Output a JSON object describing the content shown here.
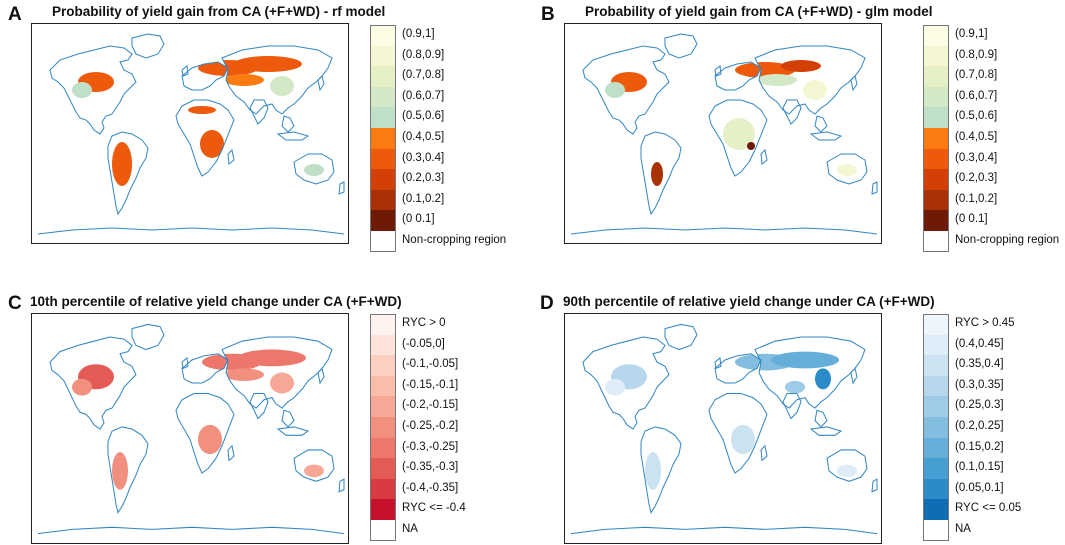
{
  "chart_data": [
    {
      "type": "choropleth-map",
      "panel_letter": "A",
      "title": "Probability of yield gain from CA (+F+WD) - rf model",
      "legend": [
        {
          "label": "(0.9,1]",
          "color": "#fdfde6"
        },
        {
          "label": "(0.8,0.9]",
          "color": "#f4f7d2"
        },
        {
          "label": "(0.7,0.8]",
          "color": "#e6f0c6"
        },
        {
          "label": "(0.6,0.7]",
          "color": "#d2e8c6"
        },
        {
          "label": "(0.5,0.6]",
          "color": "#bfe0c7"
        },
        {
          "label": "(0.4,0.5]",
          "color": "#fb7a12"
        },
        {
          "label": "(0.3,0.4]",
          "color": "#ee5a0c"
        },
        {
          "label": "(0.2,0.3]",
          "color": "#d23f07"
        },
        {
          "label": "(0.1,0.2]",
          "color": "#a83205"
        },
        {
          "label": "(0 0.1]",
          "color": "#6e1a04"
        },
        {
          "label": "Non-cropping region",
          "color": "#ffffff"
        }
      ]
    },
    {
      "type": "choropleth-map",
      "panel_letter": "B",
      "title": "Probability of yield gain from CA (+F+WD) - glm model",
      "legend": [
        {
          "label": "(0.9,1]",
          "color": "#fdfde6"
        },
        {
          "label": "(0.8,0.9]",
          "color": "#f4f7d2"
        },
        {
          "label": "(0.7,0.8]",
          "color": "#e6f0c6"
        },
        {
          "label": "(0.6,0.7]",
          "color": "#d2e8c6"
        },
        {
          "label": "(0.5,0.6]",
          "color": "#bfe0c7"
        },
        {
          "label": "(0.4,0.5]",
          "color": "#fb7a12"
        },
        {
          "label": "(0.3,0.4]",
          "color": "#ee5a0c"
        },
        {
          "label": "(0.2,0.3]",
          "color": "#d23f07"
        },
        {
          "label": "(0.1,0.2]",
          "color": "#a83205"
        },
        {
          "label": "(0 0.1]",
          "color": "#6e1a04"
        },
        {
          "label": "Non-cropping region",
          "color": "#ffffff"
        }
      ]
    },
    {
      "type": "choropleth-map",
      "panel_letter": "C",
      "title": "10th percentile of relative yield change under CA (+F+WD)",
      "legend": [
        {
          "label": "RYC > 0",
          "color": "#fff3ef"
        },
        {
          "label": "(-0.05,0]",
          "color": "#fde3da"
        },
        {
          "label": "(-0.1,-0.05]",
          "color": "#fbd0c3"
        },
        {
          "label": "(-0.15,-0.1]",
          "color": "#f9bdac"
        },
        {
          "label": "(-0.2,-0.15]",
          "color": "#f6a795"
        },
        {
          "label": "(-0.25,-0.2]",
          "color": "#f2907f"
        },
        {
          "label": "(-0.3,-0.25]",
          "color": "#ec776a"
        },
        {
          "label": "(-0.35,-0.3]",
          "color": "#e45b55"
        },
        {
          "label": "(-0.4,-0.35]",
          "color": "#d93b40"
        },
        {
          "label": "RYC <= -0.4",
          "color": "#c8102e"
        },
        {
          "label": "NA",
          "color": "#ffffff"
        }
      ]
    },
    {
      "type": "choropleth-map",
      "panel_letter": "D",
      "title": "90th percentile of relative yield change under CA (+F+WD)",
      "legend": [
        {
          "label": "RYC > 0.45",
          "color": "#eef5fb"
        },
        {
          "label": "(0.4,0.45]",
          "color": "#ddecf6"
        },
        {
          "label": "(0.35,0.4]",
          "color": "#cbe2f1"
        },
        {
          "label": "(0.3,0.35]",
          "color": "#b6d7ec"
        },
        {
          "label": "(0.25,0.3]",
          "color": "#9ecbe6"
        },
        {
          "label": "(0.2,0.25]",
          "color": "#83bde0"
        },
        {
          "label": "(0.15,0.2]",
          "color": "#65aed9"
        },
        {
          "label": "(0.1,0.15]",
          "color": "#479ed2"
        },
        {
          "label": "(0.05,0.1]",
          "color": "#2b8bc8"
        },
        {
          "label": "RYC <= 0.05",
          "color": "#0f6db6"
        },
        {
          "label": "NA",
          "color": "#ffffff"
        }
      ]
    }
  ]
}
